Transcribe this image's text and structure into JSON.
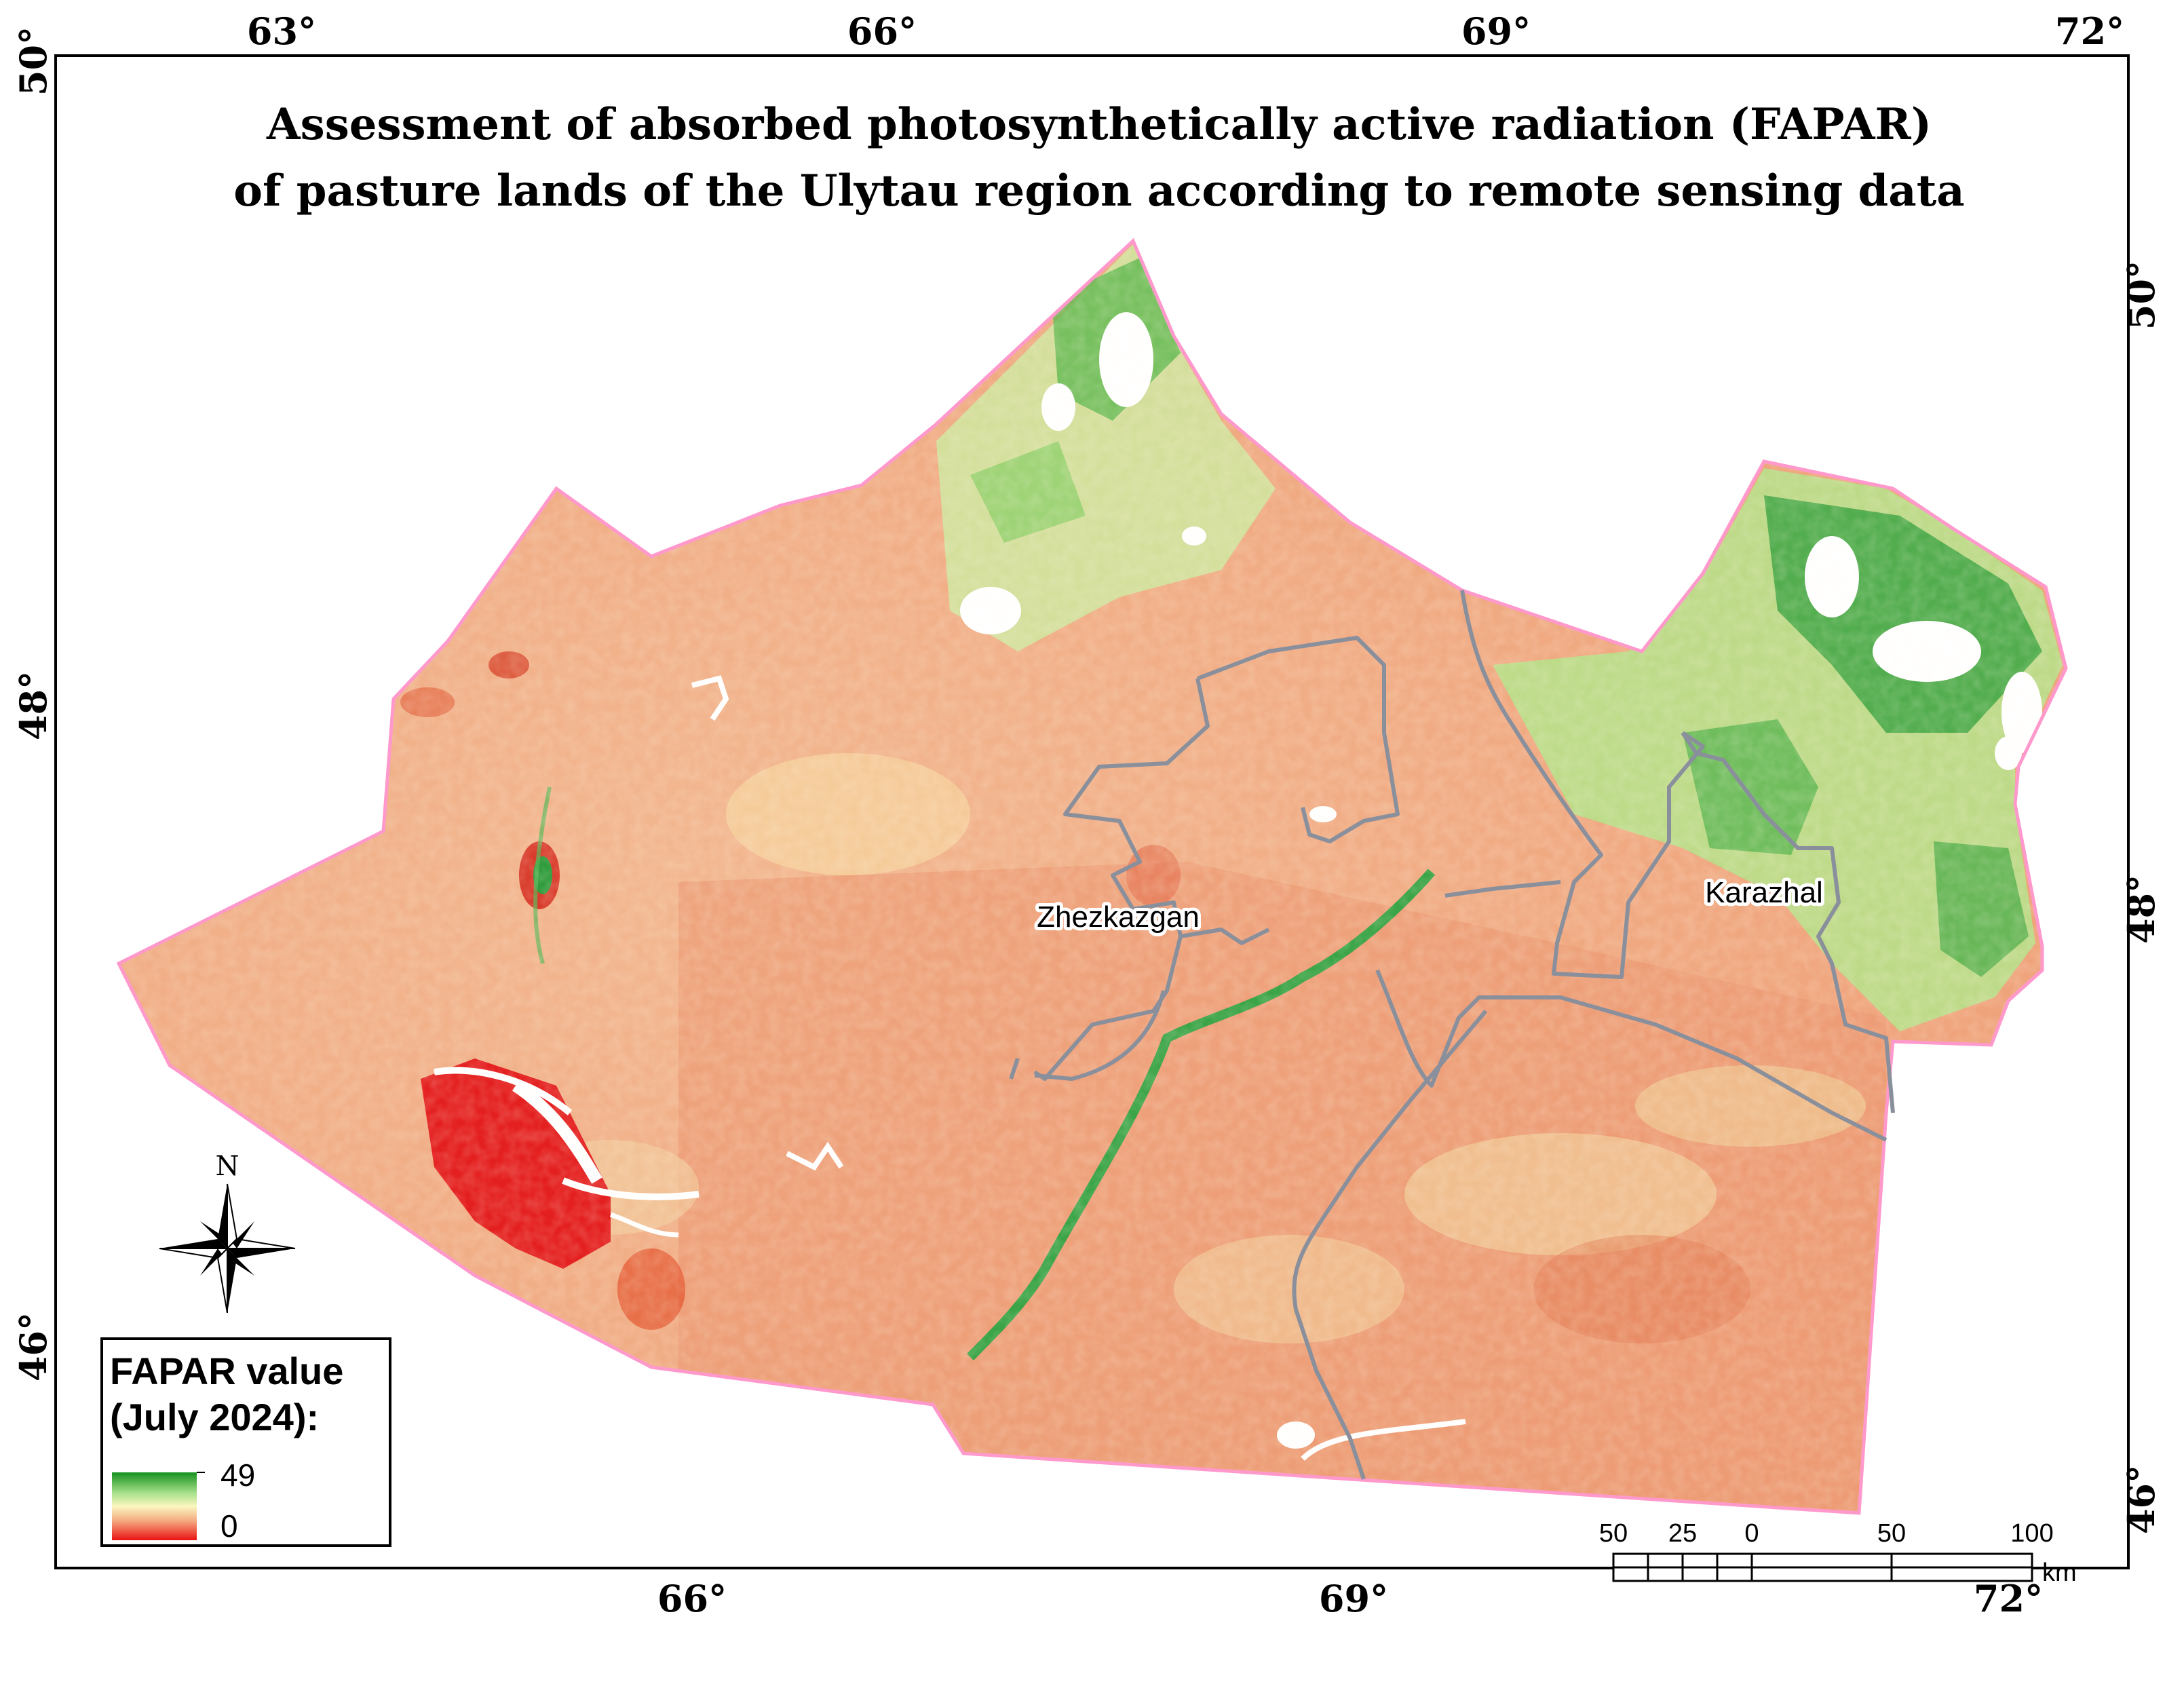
{
  "map": {
    "title_line1": "Assessment of absorbed photosynthetically active radiation (FAPAR)",
    "title_line2": "of pasture lands of the Ulytau region according to remote sensing data",
    "top_ticks": [
      "63°",
      "66°",
      "69°",
      "72°"
    ],
    "bottom_ticks": [
      "66°",
      "69°",
      "72°"
    ],
    "left_ticks": [
      "50°",
      "48°",
      "46°"
    ],
    "right_ticks": [
      "50°",
      "48°",
      "46°"
    ],
    "cities": {
      "zhezkazgan": "Zhezkazgan",
      "karazhal": "Karazhal"
    },
    "north_arrow_label": "N",
    "colors": {
      "region_outline": "#ff99cc",
      "district_boundary": "#8a8f9c",
      "fapar_low": "#ee1c1c",
      "fapar_mid": "#f3e6a6",
      "fapar_high": "#1d9b2e",
      "base_orange": "#f0a77c"
    }
  },
  "legend": {
    "title_line1": "FAPAR value",
    "title_line2": "(July 2024):",
    "max_label": "49",
    "min_label": "0"
  },
  "scale_bar": {
    "labels": [
      "50",
      "25",
      "0",
      "50",
      "100"
    ],
    "unit": "km"
  }
}
